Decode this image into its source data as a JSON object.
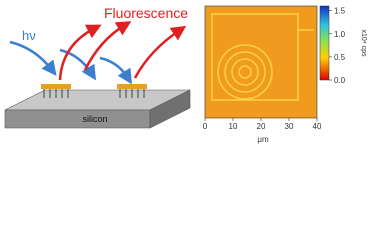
{
  "schematic": {
    "excitation_label": "hν",
    "emission_label": "Fluorescence",
    "substrate_label": "silicon"
  },
  "image": {
    "xlim": [
      0,
      40
    ],
    "xticks": [
      0,
      10,
      20,
      30,
      40
    ],
    "xlabel": "μm",
    "colorbar": {
      "lim": [
        0,
        1.6
      ],
      "ticks": [
        {
          "value": 0,
          "label": "0.0"
        },
        {
          "value": 0.5,
          "label": "0.5"
        },
        {
          "value": 1,
          "label": "1.0"
        },
        {
          "value": 1.5,
          "label": "1.5"
        }
      ],
      "unit_label": "x10⁴ cps"
    }
  }
}
